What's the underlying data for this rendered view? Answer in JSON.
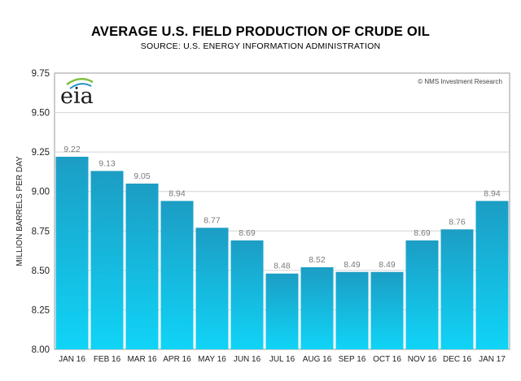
{
  "chart_data": {
    "type": "bar",
    "title": "AVERAGE U.S. FIELD PRODUCTION OF CRUDE OIL",
    "subtitle": "SOURCE: U.S. ENERGY INFORMATION ADMINISTRATION",
    "ylabel": "MILLION BARRELS PER DAY",
    "xlabel": "",
    "ylim": [
      8.0,
      9.75
    ],
    "yticks": [
      "8.00",
      "8.25",
      "8.50",
      "8.75",
      "9.00",
      "9.25",
      "9.50",
      "9.75"
    ],
    "categories": [
      "JAN 16",
      "FEB 16",
      "MAR 16",
      "APR 16",
      "MAY 16",
      "JUN 16",
      "JUL 16",
      "AUG 16",
      "SEP 16",
      "OCT 16",
      "NOV 16",
      "DEC 16",
      "JAN 17"
    ],
    "values": [
      9.22,
      9.13,
      9.05,
      8.94,
      8.77,
      8.69,
      8.48,
      8.52,
      8.49,
      8.49,
      8.69,
      8.76,
      8.94
    ],
    "data_labels": [
      "9.22",
      "9.13",
      "9.05",
      "8.94",
      "8.77",
      "8.69",
      "8.48",
      "8.52",
      "8.49",
      "8.49",
      "8.69",
      "8.76",
      "8.94"
    ],
    "grid": true,
    "bar_color_top": "#1c9dc4",
    "bar_color_bottom": "#10d4f7"
  },
  "logo": {
    "text": "eia"
  },
  "credit": "© NMS Investment Research"
}
